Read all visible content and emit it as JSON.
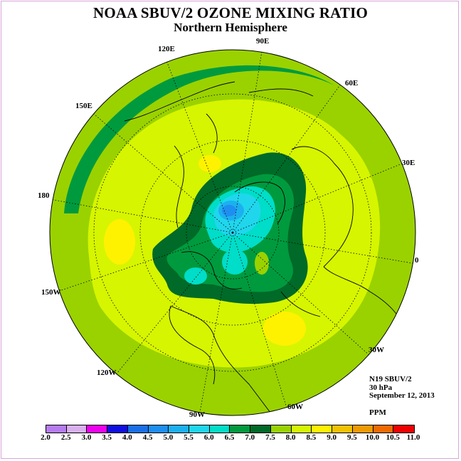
{
  "title": "NOAA SBUV/2 OZONE MIXING RATIO",
  "subtitle": "Northern Hemisphere",
  "longitude_labels": [
    "90E",
    "60E",
    "30E",
    "0",
    "30W",
    "60W",
    "90W",
    "120W",
    "150W",
    "180",
    "150E",
    "120E"
  ],
  "info": {
    "instrument": "N19 SBUV/2",
    "level": "30 hPa",
    "date": "September 12, 2013",
    "units": "PPM"
  },
  "colorbar": {
    "ticks": [
      "2.0",
      "2.5",
      "3.0",
      "3.5",
      "4.0",
      "4.5",
      "5.0",
      "5.5",
      "6.0",
      "6.5",
      "7.0",
      "7.5",
      "8.0",
      "8.5",
      "9.0",
      "9.5",
      "10.0",
      "10.5",
      "11.0"
    ],
    "colors": [
      "#b77cf0",
      "#d9b0ee",
      "#ee00ee",
      "#1010e0",
      "#1a6fe6",
      "#1e8ef0",
      "#1cb0f0",
      "#20d6ec",
      "#00ddc8",
      "#009a3e",
      "#006a28",
      "#9ad200",
      "#d6f500",
      "#fff200",
      "#f2c200",
      "#ef9a00",
      "#ee6a00",
      "#ee0000",
      "#8a5a3c"
    ]
  }
}
